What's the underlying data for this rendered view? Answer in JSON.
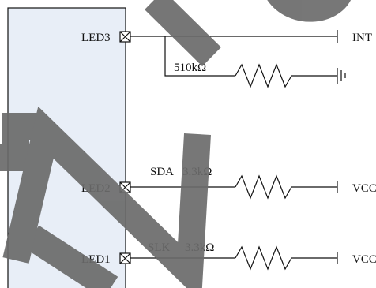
{
  "chip": {
    "pins": [
      {
        "label": "LED3"
      },
      {
        "label": "LED2"
      },
      {
        "label": "LED1"
      }
    ]
  },
  "nets": {
    "int_label": "INT",
    "vcc_label_1": "VCC",
    "vcc_label_2": "VCC"
  },
  "resistors": {
    "r_pull": {
      "value": "510kΩ"
    },
    "r_sda": {
      "name": "SDA",
      "value": "3.3kΩ"
    },
    "r_slk": {
      "name": "SLK",
      "value": "3.3kΩ"
    }
  },
  "colors": {
    "chip_fill": "#e8eef7",
    "watermark": "#6b6b6b"
  },
  "icons": {
    "pin_marker": "boxed-x-icon",
    "ground": "ground-icon",
    "resistor": "zigzag-resistor-icon"
  }
}
